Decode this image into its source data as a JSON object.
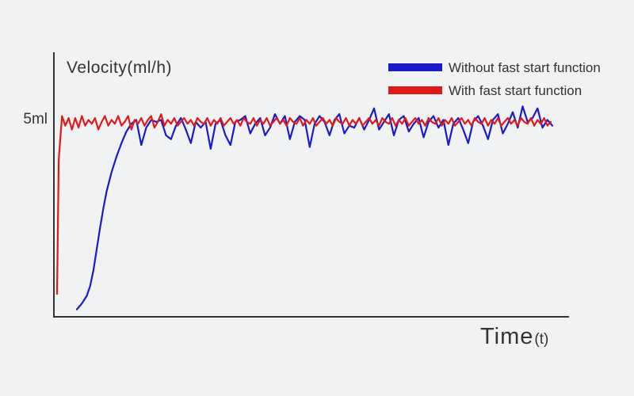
{
  "chart_data": {
    "type": "line",
    "title": "",
    "ylabel": "Velocity(ml/h)",
    "xlabel": "Time",
    "xlabel_unit": "(t)",
    "xlim": [
      0,
      300
    ],
    "ylim": [
      0,
      6.7
    ],
    "grid": false,
    "legend_position": "top-right",
    "y_ticks": [
      {
        "value": 5,
        "label": "5ml"
      }
    ],
    "series": [
      {
        "name": "Without fast start function",
        "color": "#1a1ac8",
        "x": [
          12,
          15,
          18,
          20,
          22,
          24,
          26,
          28,
          30,
          33,
          36,
          39,
          42,
          45,
          48,
          51,
          54,
          57,
          60,
          63,
          66,
          69,
          72,
          75,
          78,
          81,
          84,
          87,
          90,
          93,
          96,
          99,
          102,
          105,
          108,
          111,
          114,
          117,
          120,
          123,
          126,
          129,
          132,
          135,
          138,
          141,
          144,
          147,
          150,
          153,
          156,
          159,
          162,
          165,
          168,
          171,
          174,
          177,
          180,
          183,
          186,
          189,
          192,
          195,
          198,
          201,
          204,
          207,
          210,
          213,
          216,
          219,
          222,
          225,
          228,
          231,
          234,
          237,
          240,
          243,
          246,
          249,
          252,
          255,
          258,
          261,
          264,
          267,
          270,
          273,
          276,
          279,
          282,
          285,
          288,
          291,
          294,
          297,
          300
        ],
        "y": [
          0.05,
          0.2,
          0.4,
          0.65,
          1.05,
          1.6,
          2.15,
          2.65,
          3.1,
          3.6,
          4.0,
          4.35,
          4.65,
          4.85,
          4.95,
          4.3,
          4.75,
          4.95,
          4.9,
          4.95,
          4.55,
          4.45,
          4.8,
          5.0,
          4.7,
          4.35,
          4.9,
          4.75,
          4.9,
          4.2,
          4.85,
          4.95,
          4.55,
          4.3,
          4.9,
          4.95,
          5.05,
          4.6,
          4.85,
          5.0,
          4.55,
          4.75,
          5.1,
          4.85,
          5.05,
          4.45,
          4.9,
          5.05,
          4.95,
          4.25,
          4.85,
          5.05,
          4.9,
          4.55,
          4.95,
          5.1,
          4.6,
          4.8,
          4.75,
          5.0,
          4.7,
          4.95,
          5.25,
          4.7,
          4.9,
          5.1,
          4.55,
          4.95,
          5.05,
          4.65,
          4.85,
          5.0,
          4.5,
          4.9,
          5.05,
          4.75,
          4.95,
          4.3,
          4.85,
          5.0,
          4.7,
          4.35,
          4.9,
          5.05,
          4.8,
          4.45,
          4.95,
          5.1,
          4.6,
          4.85,
          5.15,
          4.75,
          5.3,
          4.9,
          5.0,
          5.25,
          4.75,
          4.95,
          4.8
        ]
      },
      {
        "name": "With fast start function",
        "color": "#e01a1a",
        "x": [
          0,
          1,
          2,
          3,
          5,
          7,
          9,
          11,
          13,
          15,
          17,
          19,
          21,
          23,
          25,
          27,
          29,
          31,
          33,
          35,
          37,
          39,
          41,
          43,
          45,
          47,
          49,
          51,
          53,
          55,
          57,
          59,
          61,
          63,
          65,
          67,
          69,
          71,
          73,
          75,
          77,
          79,
          81,
          83,
          85,
          87,
          89,
          91,
          93,
          95,
          97,
          99,
          101,
          103,
          105,
          107,
          109,
          111,
          113,
          115,
          117,
          119,
          121,
          123,
          125,
          127,
          129,
          131,
          133,
          135,
          137,
          139,
          141,
          143,
          145,
          147,
          149,
          151,
          153,
          155,
          157,
          159,
          161,
          163,
          165,
          167,
          169,
          171,
          173,
          175,
          177,
          179,
          181,
          183,
          185,
          187,
          189,
          191,
          193,
          195,
          197,
          199,
          201,
          203,
          205,
          207,
          209,
          211,
          213,
          215,
          217,
          219,
          221,
          223,
          225,
          227,
          229,
          231,
          233,
          235,
          237,
          239,
          241,
          243,
          245,
          247,
          249,
          251,
          253,
          255,
          257,
          259,
          261,
          263,
          265,
          267,
          269,
          271,
          273,
          275,
          277,
          279,
          281,
          283,
          285,
          287,
          289,
          291,
          293,
          295,
          297,
          299
        ],
        "y": [
          0.45,
          3.9,
          4.5,
          5.05,
          4.8,
          5.0,
          4.7,
          5.0,
          4.75,
          5.05,
          4.8,
          4.95,
          4.85,
          5.0,
          4.7,
          4.9,
          5.05,
          4.8,
          4.95,
          4.85,
          5.05,
          4.8,
          4.9,
          5.05,
          4.7,
          4.95,
          4.85,
          5.0,
          4.8,
          4.95,
          5.05,
          4.75,
          4.9,
          5.1,
          4.8,
          4.95,
          4.85,
          5.0,
          4.8,
          4.9,
          5.0,
          4.85,
          4.95,
          4.8,
          5.0,
          4.9,
          4.85,
          5.0,
          4.8,
          4.95,
          4.85,
          5.0,
          4.8,
          4.9,
          5.0,
          4.85,
          4.95,
          4.8,
          5.0,
          4.9,
          4.85,
          5.0,
          4.8,
          4.95,
          4.85,
          5.0,
          4.8,
          4.9,
          5.0,
          4.85,
          4.95,
          4.8,
          5.0,
          4.9,
          4.85,
          5.0,
          4.8,
          4.95,
          4.85,
          5.0,
          4.8,
          4.9,
          5.0,
          4.85,
          4.95,
          4.8,
          5.0,
          4.9,
          4.85,
          5.0,
          4.8,
          4.95,
          4.85,
          5.0,
          4.8,
          4.9,
          5.0,
          4.85,
          4.95,
          4.8,
          5.0,
          4.9,
          4.85,
          5.0,
          4.8,
          4.95,
          4.85,
          5.0,
          4.8,
          4.9,
          5.0,
          4.85,
          4.95,
          4.8,
          5.0,
          4.9,
          4.85,
          5.0,
          4.8,
          4.95,
          4.85,
          5.0,
          4.8,
          4.9,
          5.0,
          4.85,
          4.95,
          4.8,
          5.0,
          4.9,
          4.85,
          5.0,
          4.8,
          4.95,
          4.85,
          5.0,
          4.8,
          4.9,
          5.0,
          4.85,
          4.95,
          4.8,
          5.0,
          4.9,
          4.85,
          5.0,
          4.8,
          4.95,
          4.85,
          5.0,
          4.8,
          4.9
        ]
      }
    ]
  }
}
